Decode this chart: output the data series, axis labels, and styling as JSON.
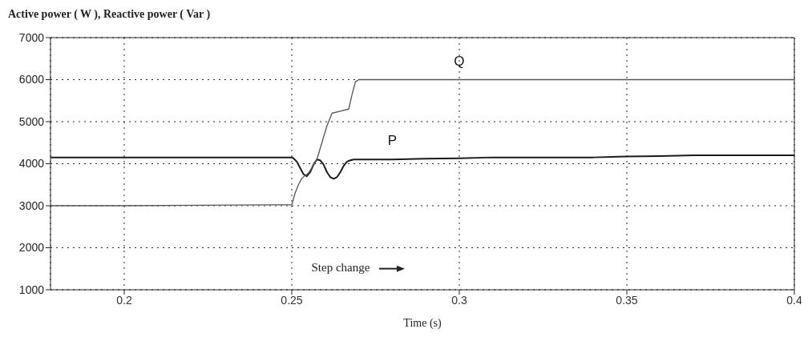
{
  "chart_data": {
    "type": "line",
    "title": "Active power ( W ), Reactive power ( Var )",
    "xlabel": "Time (s)",
    "xlim": [
      0.178,
      0.4
    ],
    "xticks": [
      0.2,
      0.25,
      0.3,
      0.35,
      0.4
    ],
    "ylim": [
      1000,
      7000
    ],
    "yticks": [
      1000,
      2000,
      3000,
      4000,
      5000,
      6000,
      7000
    ],
    "grid": true,
    "legend": false,
    "marker": "none",
    "line_style": "solid",
    "annotations": [
      "Step change"
    ],
    "series": [
      {
        "name": "P",
        "color": "#1a1a1a",
        "x": [
          0.178,
          0.2,
          0.25,
          0.2505,
          0.2515,
          0.2525,
          0.2535,
          0.2545,
          0.2555,
          0.2565,
          0.2575,
          0.2585,
          0.2595,
          0.2605,
          0.2615,
          0.2625,
          0.2635,
          0.2645,
          0.2655,
          0.2665,
          0.2675,
          0.2685,
          0.27,
          0.28,
          0.29,
          0.3,
          0.31,
          0.33,
          0.34,
          0.35,
          0.36,
          0.37,
          0.4
        ],
        "values": [
          4150,
          4150,
          4150,
          4130,
          4050,
          3900,
          3750,
          3700,
          3800,
          3980,
          4100,
          4080,
          3980,
          3800,
          3680,
          3640,
          3680,
          3800,
          3950,
          4050,
          4080,
          4100,
          4100,
          4100,
          4120,
          4130,
          4150,
          4150,
          4150,
          4170,
          4180,
          4200,
          4200
        ]
      },
      {
        "name": "Q",
        "color": "#555555",
        "x": [
          0.178,
          0.2,
          0.245,
          0.25,
          0.251,
          0.252,
          0.253,
          0.254,
          0.255,
          0.256,
          0.2575,
          0.259,
          0.2605,
          0.262,
          0.2645,
          0.267,
          0.268,
          0.269,
          0.27,
          0.3,
          0.35,
          0.4
        ],
        "values": [
          3000,
          3000,
          3020,
          3020,
          3300,
          3500,
          3650,
          3720,
          3780,
          3900,
          4100,
          4500,
          4900,
          5200,
          5250,
          5300,
          5650,
          5950,
          6000,
          6000,
          6000,
          6000
        ]
      }
    ]
  }
}
